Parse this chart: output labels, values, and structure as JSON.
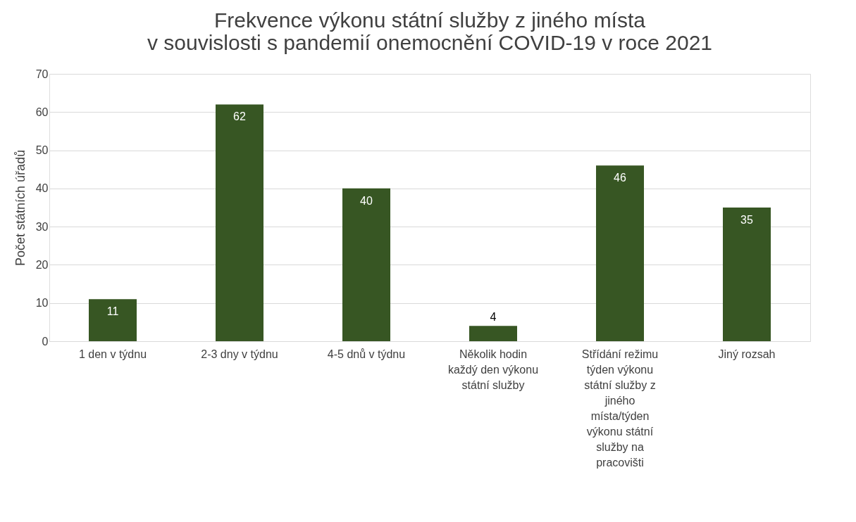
{
  "chart_data": {
    "type": "bar",
    "title": "Frekvence výkonu státní služby z jiného místa\nv souvislosti s pandemií onemocnění COVID-19 v roce 2021",
    "ylabel": "Počet státních úřadů",
    "categories": [
      "1 den v týdnu",
      "2-3 dny v týdnu",
      "4-5 dnů v týdnu",
      "Několik hodin každý den výkonu státní služby",
      "Střídání režimu týden výkonu státní služby z jiného místa/týden výkonu státní služby na pracovišti",
      "Jiný rozsah"
    ],
    "values": [
      11,
      62,
      40,
      4,
      46,
      35
    ],
    "color": "#375623",
    "ylim": [
      0,
      70
    ],
    "yticks": [
      0,
      10,
      20,
      30,
      40,
      50,
      60,
      70
    ],
    "grid": "y",
    "data_labels": true
  }
}
